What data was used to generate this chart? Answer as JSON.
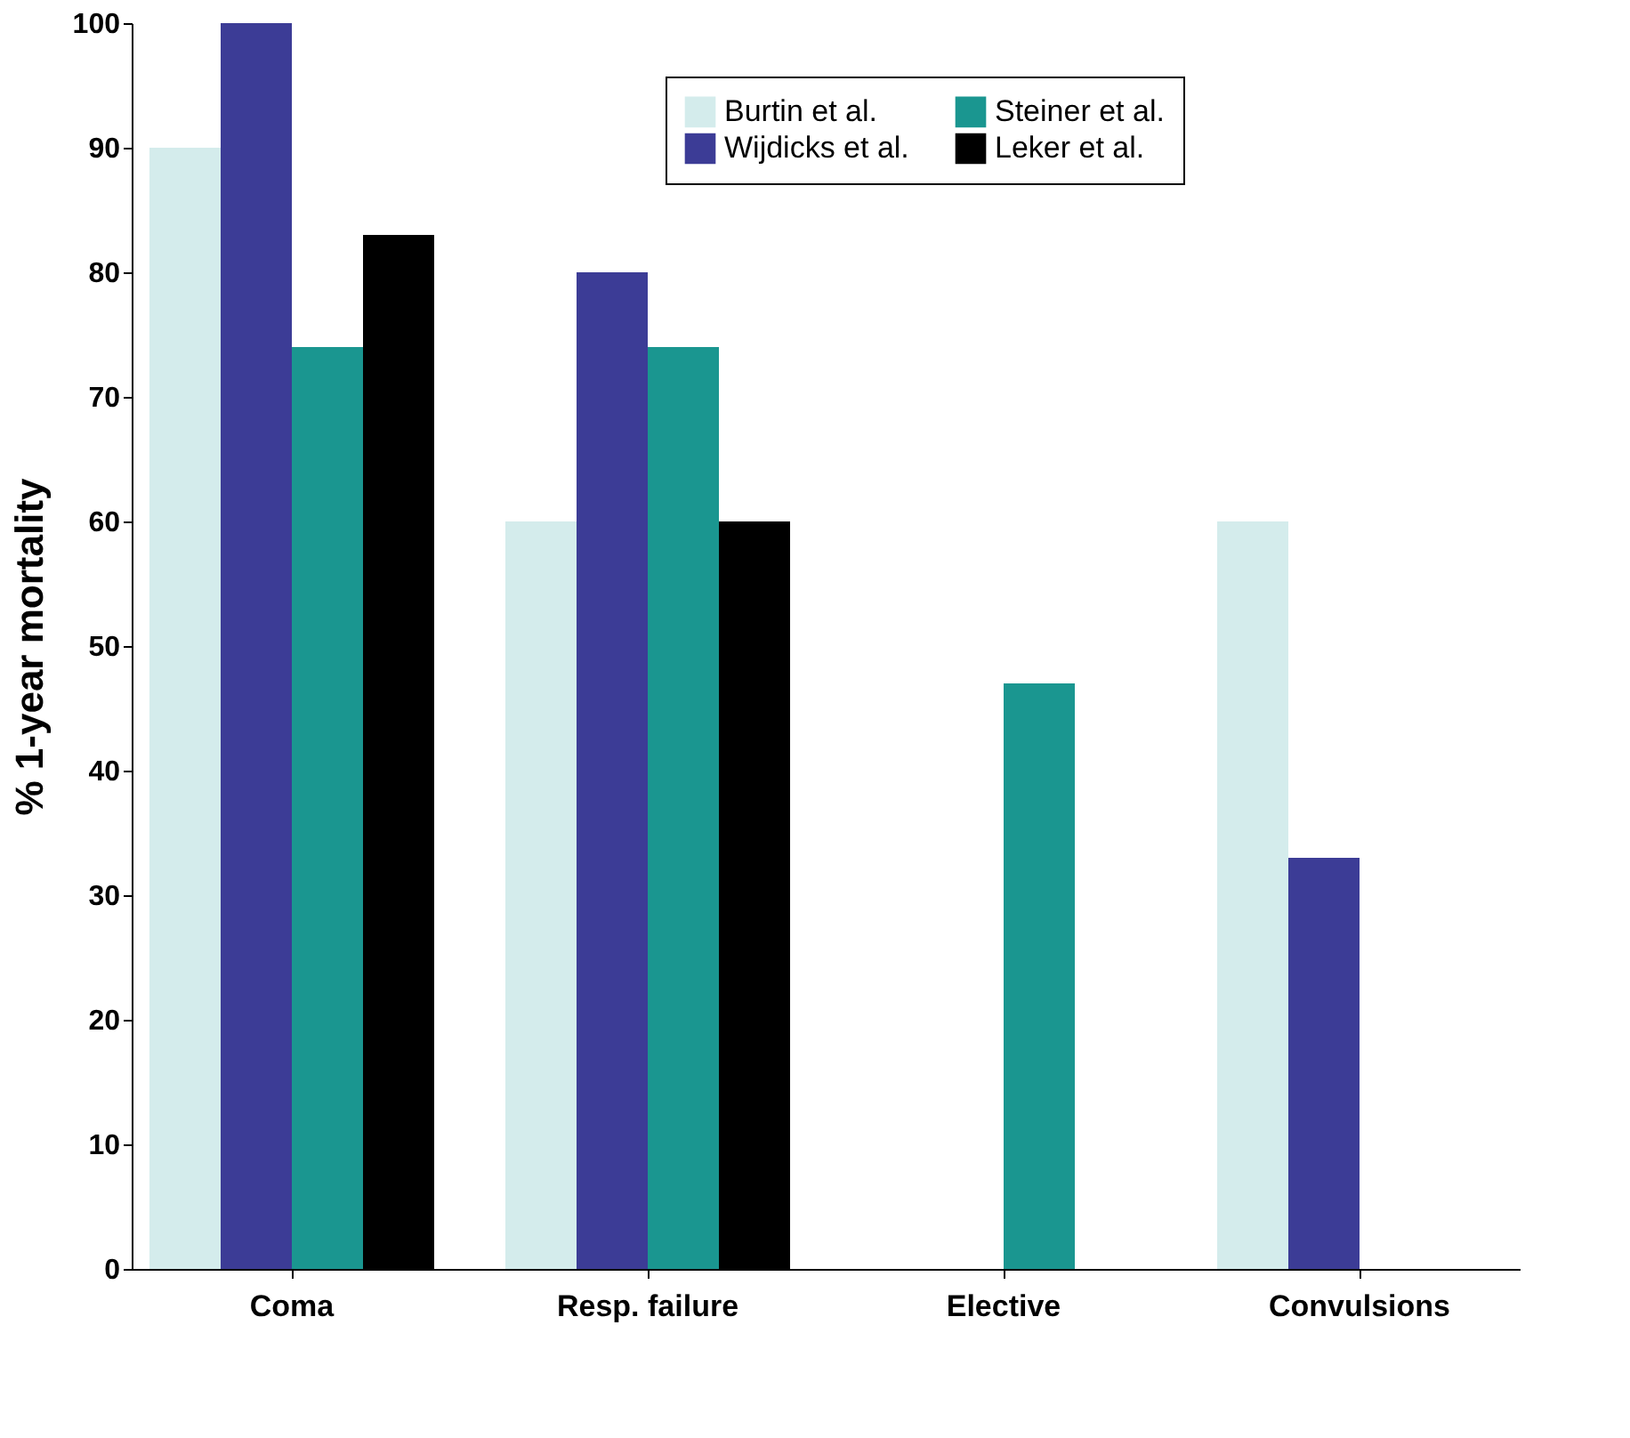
{
  "chart_data": {
    "type": "bar",
    "ylabel": "% 1-year mortality",
    "categories": [
      "Coma",
      "Resp. failure",
      "Elective",
      "Convulsions"
    ],
    "series": [
      {
        "name": "Burtin et al.",
        "color": "#d4ecec",
        "values": [
          90,
          60,
          null,
          60
        ]
      },
      {
        "name": "Wijdicks et al.",
        "color": "#3c3c96",
        "values": [
          100,
          80,
          null,
          33
        ]
      },
      {
        "name": "Steiner et al.",
        "color": "#1a9690",
        "values": [
          74,
          74,
          47,
          null
        ]
      },
      {
        "name": "Leker et al.",
        "color": "#000000",
        "values": [
          83,
          60,
          null,
          null
        ]
      }
    ],
    "ylim": [
      0,
      100
    ],
    "yticks": [
      0,
      10,
      20,
      30,
      40,
      50,
      60,
      70,
      80,
      90,
      100
    ],
    "grid": false,
    "legend": "top right"
  }
}
